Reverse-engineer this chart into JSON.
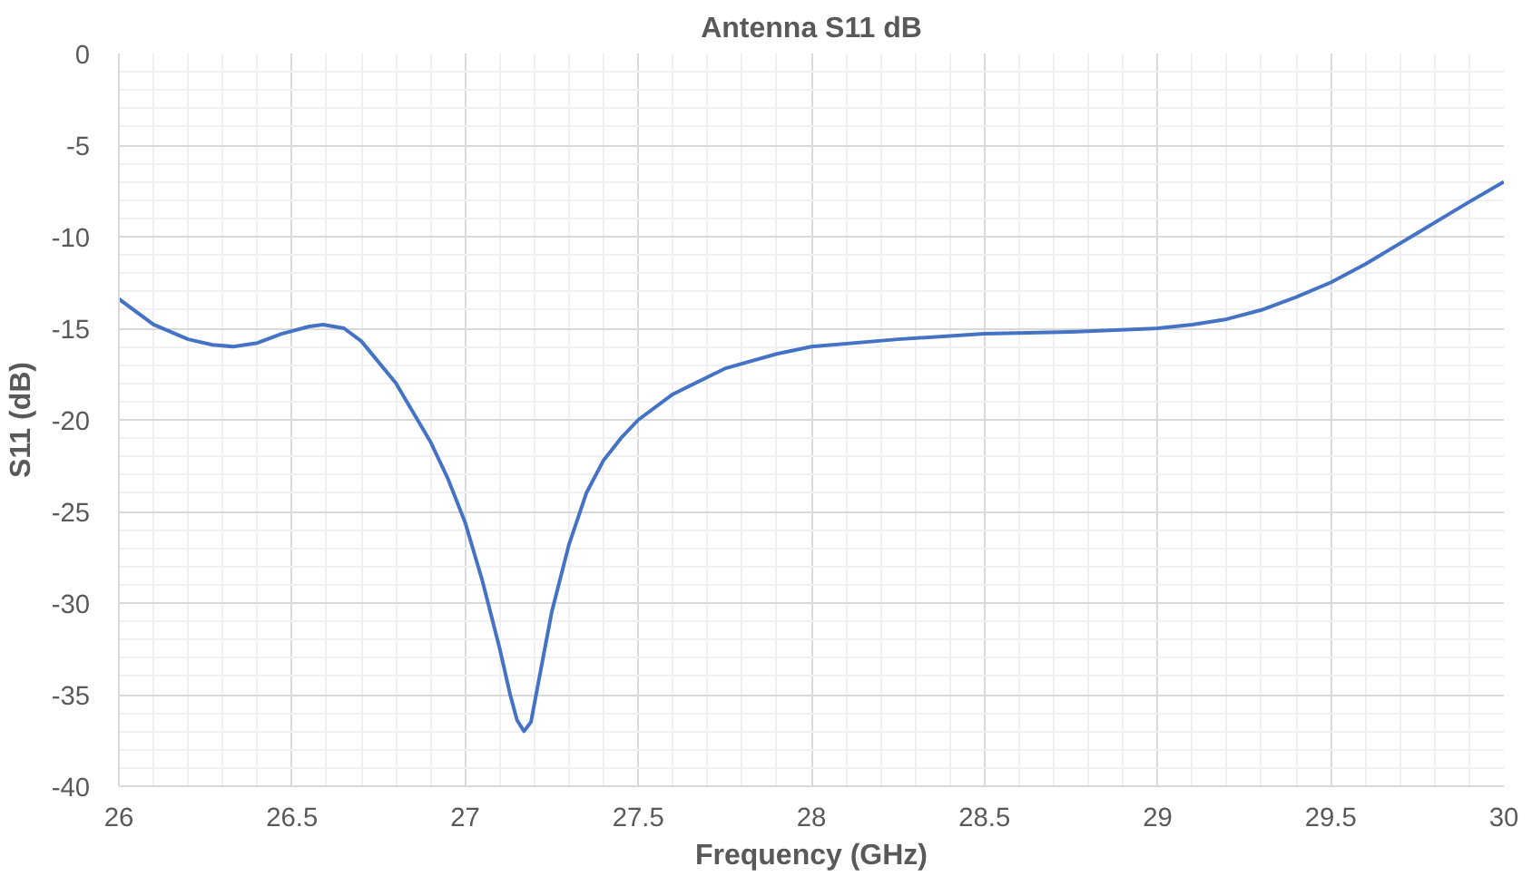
{
  "chart_data": {
    "type": "line",
    "title": "Antenna S11 dB",
    "xlabel": "Frequency (GHz)",
    "ylabel": "S11 (dB)",
    "x": [
      26,
      26.1,
      26.2,
      26.27,
      26.33,
      26.4,
      26.47,
      26.55,
      26.59,
      26.65,
      26.7,
      26.8,
      26.9,
      26.95,
      27.0,
      27.05,
      27.1,
      27.13,
      27.15,
      27.17,
      27.19,
      27.22,
      27.25,
      27.3,
      27.35,
      27.4,
      27.45,
      27.5,
      27.6,
      27.75,
      27.9,
      28,
      28.25,
      28.5,
      28.75,
      29,
      29.1,
      29.2,
      29.3,
      29.4,
      29.5,
      29.6,
      29.75,
      29.9,
      30
    ],
    "series": [
      {
        "color": "#4472c4",
        "values": [
          -13.4,
          -14.8,
          -15.6,
          -15.9,
          -16.0,
          -15.8,
          -15.3,
          -14.9,
          -14.8,
          -15.0,
          -15.7,
          -18.0,
          -21.2,
          -23.2,
          -25.6,
          -28.8,
          -32.5,
          -35.0,
          -36.4,
          -37.0,
          -36.5,
          -33.5,
          -30.5,
          -26.8,
          -24.0,
          -22.2,
          -21.0,
          -20.0,
          -18.6,
          -17.2,
          -16.4,
          -16.0,
          -15.6,
          -15.3,
          -15.2,
          -15.0,
          -14.8,
          -14.5,
          -14.0,
          -13.3,
          -12.5,
          -11.5,
          -9.8,
          -8.1,
          -7.0
        ]
      }
    ],
    "xlim": [
      26,
      30
    ],
    "ylim": [
      -40,
      0
    ],
    "xticks": [
      26,
      26.5,
      27,
      27.5,
      28,
      28.5,
      29,
      29.5,
      30
    ],
    "yticks": [
      -40,
      -35,
      -30,
      -25,
      -20,
      -15,
      -10,
      -5,
      0
    ],
    "grid": true,
    "marker": "none",
    "line_style": "solid"
  }
}
